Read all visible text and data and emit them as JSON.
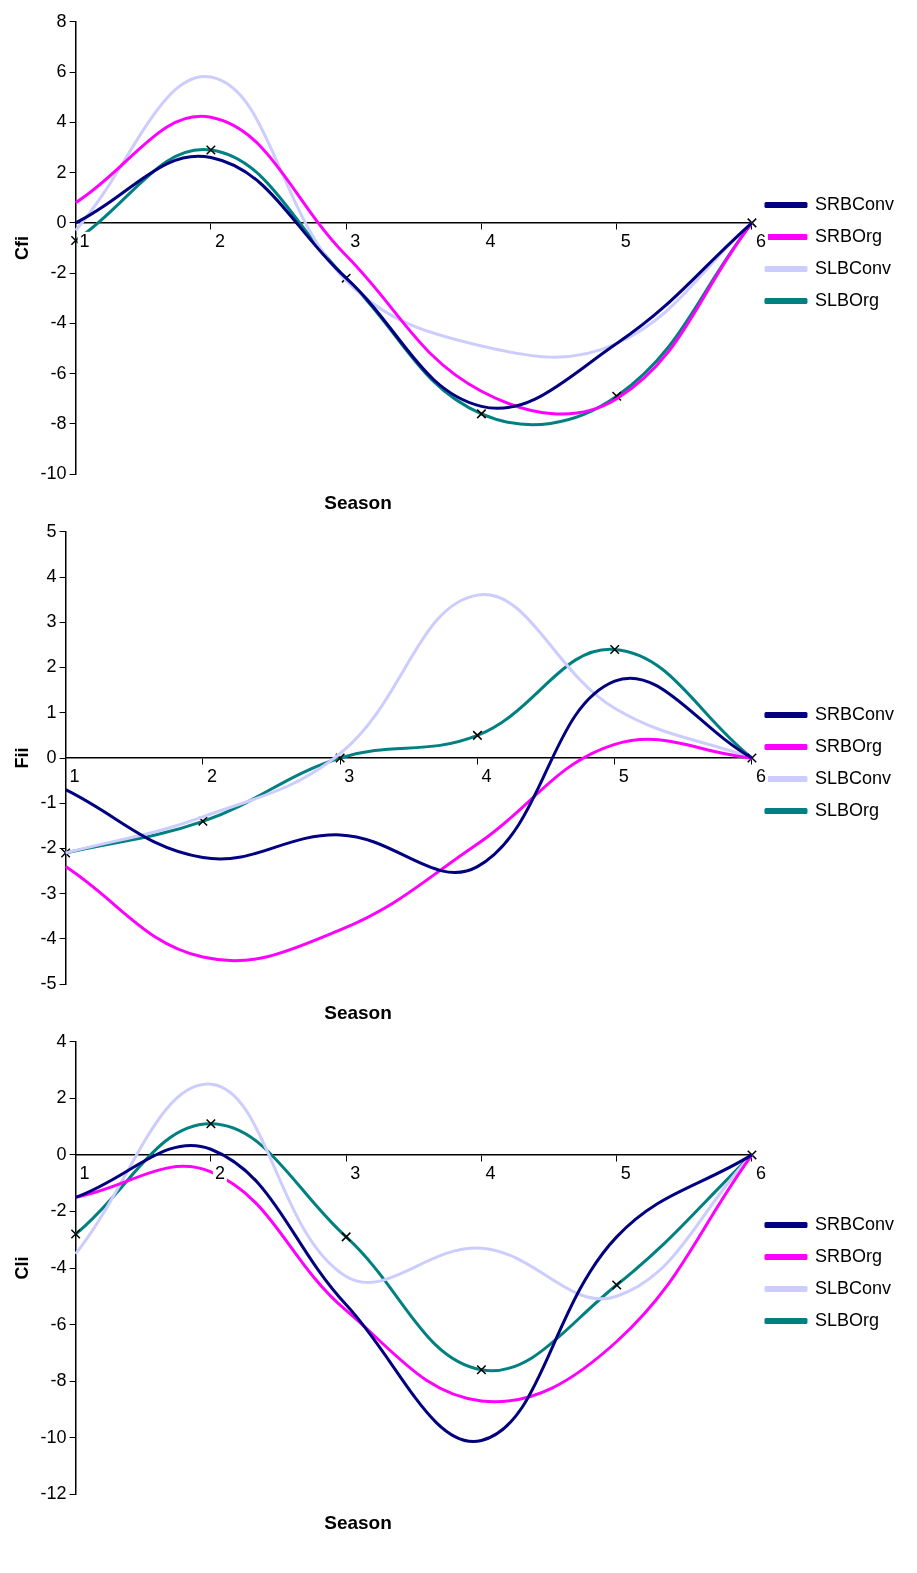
{
  "chart_data": [
    {
      "type": "line",
      "ylabel": "Cfi",
      "xlabel": "Season",
      "categories": [
        "1",
        "2",
        "3",
        "4",
        "5",
        "6"
      ],
      "ylim": [
        -10,
        8
      ],
      "yticks": [
        -10,
        -8,
        -6,
        -4,
        -2,
        0,
        2,
        4,
        6,
        8
      ],
      "grid": false,
      "legend": "right",
      "series": [
        {
          "name": "SRBConv",
          "color": "#000080",
          "marker": "none",
          "values": [
            0,
            2.6,
            -2.2,
            -7.3,
            -4.8,
            0
          ]
        },
        {
          "name": "SRBOrg",
          "color": "#ff00ff",
          "marker": "none",
          "values": [
            0.8,
            4.2,
            -1.3,
            -6.7,
            -7.0,
            0
          ]
        },
        {
          "name": "SLBConv",
          "color": "#ccccff",
          "marker": "none",
          "values": [
            -0.3,
            5.8,
            -2.3,
            -4.9,
            -4.8,
            0
          ]
        },
        {
          "name": "SLBOrg",
          "color": "#008080",
          "marker": "cross",
          "values": [
            -0.7,
            2.9,
            -2.2,
            -7.6,
            -6.9,
            0
          ]
        }
      ]
    },
    {
      "type": "line",
      "ylabel": "Fii",
      "xlabel": "Season",
      "categories": [
        "1",
        "2",
        "3",
        "4",
        "5",
        "6"
      ],
      "ylim": [
        -5,
        5
      ],
      "yticks": [
        -5,
        -4,
        -3,
        -2,
        -1,
        0,
        1,
        2,
        3,
        4,
        5
      ],
      "grid": false,
      "legend": "right",
      "series": [
        {
          "name": "SRBConv",
          "color": "#000080",
          "marker": "none",
          "values": [
            -0.7,
            -2.2,
            -1.7,
            -2.4,
            1.7,
            0
          ]
        },
        {
          "name": "SRBOrg",
          "color": "#ff00ff",
          "marker": "none",
          "values": [
            -2.4,
            -4.4,
            -3.8,
            -1.9,
            0.3,
            0
          ]
        },
        {
          "name": "SLBConv",
          "color": "#ccccff",
          "marker": "none",
          "values": [
            -2.1,
            -1.3,
            0.1,
            3.6,
            1.1,
            0
          ]
        },
        {
          "name": "SLBOrg",
          "color": "#008080",
          "marker": "cross",
          "values": [
            -2.1,
            -1.4,
            0,
            0.5,
            2.4,
            0
          ]
        }
      ]
    },
    {
      "type": "line",
      "ylabel": "Cli",
      "xlabel": "Season",
      "categories": [
        "1",
        "2",
        "3",
        "4",
        "5",
        "6"
      ],
      "ylim": [
        -12,
        4
      ],
      "yticks": [
        -12,
        -10,
        -8,
        -6,
        -4,
        -2,
        0,
        2,
        4
      ],
      "grid": false,
      "legend": "right",
      "series": [
        {
          "name": "SRBConv",
          "color": "#000080",
          "marker": "none",
          "values": [
            -1.5,
            0.2,
            -5.3,
            -10.1,
            -2.9,
            0
          ]
        },
        {
          "name": "SRBOrg",
          "color": "#ff00ff",
          "marker": "none",
          "values": [
            -1.5,
            -0.6,
            -5.5,
            -8.7,
            -6.6,
            0
          ]
        },
        {
          "name": "SLBConv",
          "color": "#ccccff",
          "marker": "none",
          "values": [
            -3.5,
            2.5,
            -4.3,
            -3.3,
            -5.0,
            0
          ]
        },
        {
          "name": "SLBOrg",
          "color": "#008080",
          "marker": "cross",
          "values": [
            -2.8,
            1.1,
            -2.9,
            -7.6,
            -4.6,
            0
          ]
        }
      ]
    }
  ]
}
